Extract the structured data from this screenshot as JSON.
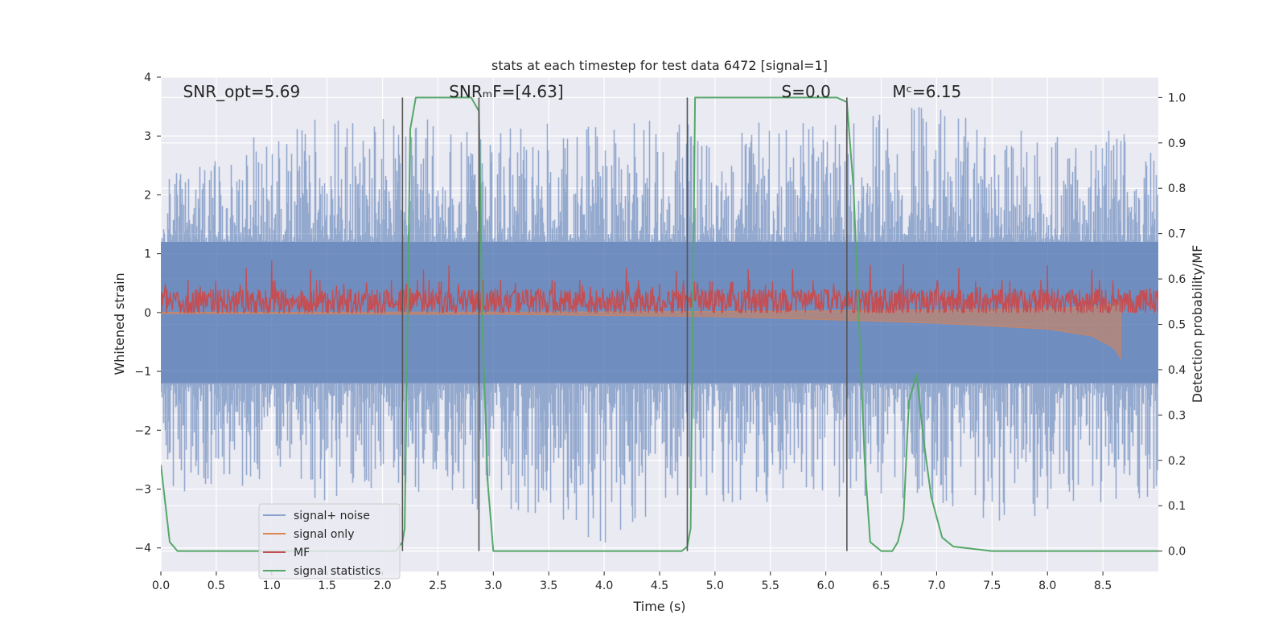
{
  "chart_data": {
    "type": "line",
    "title": "stats at each timestep for test data 6472 [signal=1]",
    "xlabel": "Time (s)",
    "ylabel": "Whitened strain",
    "ylabel_right": "Detection probability/MF",
    "xlim": [
      0,
      9.0
    ],
    "ylim": [
      -4.4,
      4.0
    ],
    "ylim_right": [
      -0.045,
      1.045
    ],
    "x_ticks": [
      0.0,
      0.5,
      1.0,
      1.5,
      2.0,
      2.5,
      3.0,
      3.5,
      4.0,
      4.5,
      5.0,
      5.5,
      6.0,
      6.5,
      7.0,
      7.5,
      8.0,
      8.5
    ],
    "x_tick_labels": [
      "0.0",
      "0.5",
      "1.0",
      "1.5",
      "2.0",
      "2.5",
      "3.0",
      "3.5",
      "4.0",
      "4.5",
      "5.0",
      "5.5",
      "6.0",
      "6.5",
      "7.0",
      "7.5",
      "8.0",
      "8.5"
    ],
    "y_ticks": [
      4,
      3,
      2,
      1,
      0,
      -1,
      -2,
      -3,
      -4
    ],
    "y_tick_labels": [
      "4",
      "3",
      "2",
      "1",
      "0",
      "−1",
      "−2",
      "−3",
      "−4"
    ],
    "y_ticks_right": [
      1.0,
      0.9,
      0.8,
      0.7,
      0.6,
      0.5,
      0.4,
      0.3,
      0.2,
      0.1,
      0.0
    ],
    "y_tick_labels_right": [
      "1.0",
      "0.9",
      "0.8",
      "0.7",
      "0.6",
      "0.5",
      "0.4",
      "0.3",
      "0.2",
      "0.1",
      "0.0"
    ],
    "grid": true,
    "legend_position": "lower-left",
    "annotations": [
      {
        "id": "snr-opt",
        "text": "SNR_opt=5.69",
        "x": 0.2
      },
      {
        "id": "snr-mf",
        "text": "SNRₘF=[4.63]",
        "x": 2.6
      },
      {
        "id": "s-val",
        "text": "S=0.0",
        "x": 5.6
      },
      {
        "id": "mc-val",
        "text": "Mᶜ=6.15",
        "x": 6.6
      }
    ],
    "vertical_lines": [
      2.18,
      2.87,
      4.75,
      6.19
    ],
    "series": [
      {
        "name": "signal+ noise",
        "axis": "left",
        "color": "#4c72b0",
        "style": "band",
        "envelope": {
          "x": [
            0.0,
            0.5,
            1.0,
            1.5,
            2.0,
            2.5,
            3.0,
            3.5,
            4.0,
            4.5,
            5.0,
            5.5,
            6.0,
            6.5,
            7.0,
            7.5,
            8.0,
            8.5,
            9.0
          ],
          "upper": [
            2.3,
            2.6,
            3.2,
            3.3,
            3.3,
            3.3,
            3.1,
            3.3,
            3.2,
            3.3,
            3.1,
            3.3,
            3.2,
            3.4,
            3.6,
            3.2,
            3.0,
            3.2,
            3.0
          ],
          "lower": [
            -3.2,
            -3.1,
            -3.0,
            -3.2,
            -3.0,
            -3.1,
            -3.5,
            -3.4,
            -4.0,
            -3.4,
            -3.2,
            -3.3,
            -3.2,
            -3.1,
            -3.3,
            -3.7,
            -3.4,
            -3.3,
            -3.2
          ],
          "core_upper": 1.2,
          "core_lower": -1.2
        }
      },
      {
        "name": "signal only",
        "axis": "left",
        "color": "#dd8452",
        "style": "chirp",
        "envelope": {
          "x": [
            0.0,
            1.0,
            2.0,
            3.0,
            4.0,
            5.0,
            6.0,
            7.0,
            8.0,
            8.4,
            8.6,
            8.66
          ],
          "amp": [
            0.02,
            0.02,
            0.03,
            0.03,
            0.05,
            0.07,
            0.12,
            0.18,
            0.28,
            0.4,
            0.6,
            0.78
          ]
        }
      },
      {
        "name": "MF",
        "axis": "left",
        "color": "#c44e52",
        "style": "noise",
        "envelope": {
          "baseline": 0.15,
          "upper": 0.55,
          "lower": 0.0,
          "peaks": [
            [
              0.77,
              0.75
            ],
            [
              1.0,
              0.88
            ],
            [
              1.35,
              0.72
            ],
            [
              2.23,
              0.65
            ],
            [
              2.37,
              0.72
            ],
            [
              2.6,
              0.8
            ],
            [
              4.2,
              0.75
            ],
            [
              4.65,
              0.7
            ],
            [
              5.3,
              0.73
            ],
            [
              5.7,
              0.73
            ],
            [
              6.4,
              0.8
            ],
            [
              6.7,
              0.82
            ],
            [
              7.2,
              0.75
            ],
            [
              8.0,
              0.8
            ],
            [
              8.4,
              0.72
            ]
          ]
        }
      },
      {
        "name": "signal statistics",
        "axis": "right",
        "color": "#55a868",
        "style": "line",
        "x": [
          0.0,
          0.08,
          0.15,
          0.3,
          1.0,
          1.5,
          2.0,
          2.12,
          2.18,
          2.2,
          2.25,
          2.3,
          2.35,
          2.5,
          2.8,
          2.87,
          2.9,
          2.95,
          3.0,
          3.5,
          4.0,
          4.5,
          4.7,
          4.75,
          4.78,
          4.82,
          4.85,
          5.0,
          5.5,
          6.0,
          6.1,
          6.19,
          6.25,
          6.3,
          6.35,
          6.4,
          6.5,
          6.6,
          6.65,
          6.7,
          6.75,
          6.82,
          6.88,
          6.95,
          7.05,
          7.15,
          7.5,
          8.0,
          8.5,
          9.0
        ],
        "y": [
          0.19,
          0.02,
          0.0,
          0.0,
          0.0,
          0.0,
          0.0,
          0.0,
          0.02,
          0.05,
          0.93,
          1.0,
          1.0,
          1.0,
          1.0,
          0.97,
          0.5,
          0.15,
          0.0,
          0.0,
          0.0,
          0.0,
          0.0,
          0.01,
          0.05,
          1.0,
          1.0,
          1.0,
          1.0,
          1.0,
          1.0,
          0.99,
          0.8,
          0.5,
          0.2,
          0.02,
          0.0,
          0.0,
          0.02,
          0.07,
          0.33,
          0.39,
          0.25,
          0.12,
          0.03,
          0.01,
          0.0,
          0.0,
          0.0,
          0.0
        ]
      }
    ]
  }
}
